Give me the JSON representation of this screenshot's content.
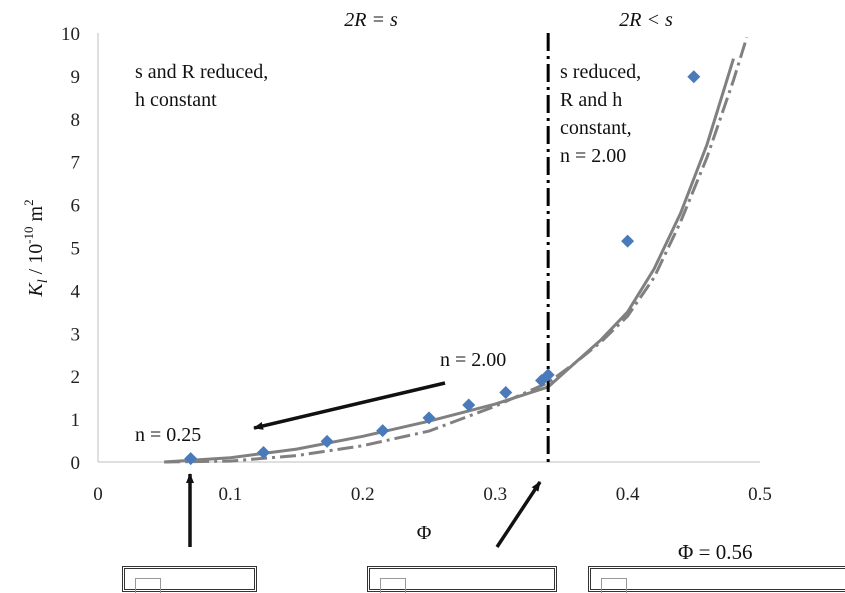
{
  "chart_data": {
    "type": "scatter",
    "xlabel": "Φ",
    "ylabel": "K_l / 10^-10 m²",
    "xlim": [
      0,
      0.5
    ],
    "ylim": [
      0,
      10
    ],
    "x_ticks": [
      "0",
      "0.1",
      "0.2",
      "0.3",
      "0.4",
      "0.5"
    ],
    "y_ticks": [
      "0",
      "1",
      "2",
      "3",
      "4",
      "5",
      "6",
      "7",
      "8",
      "9",
      "10"
    ],
    "grid": false,
    "series": [
      {
        "marker": "diamond",
        "color": "#4a7ab9",
        "x": [
          0.07,
          0.125,
          0.173,
          0.215,
          0.25,
          0.28,
          0.308,
          0.335,
          0.34,
          0.4,
          0.45
        ],
        "y": [
          0.08,
          0.22,
          0.48,
          0.73,
          1.03,
          1.33,
          1.62,
          1.9,
          2.03,
          5.15,
          8.98
        ]
      },
      {
        "style": "solid",
        "color": "#808080",
        "x": [
          0.05,
          0.1,
          0.15,
          0.2,
          0.25,
          0.3,
          0.34,
          0.36,
          0.38,
          0.4,
          0.42,
          0.44,
          0.46,
          0.48
        ],
        "y": [
          0.0,
          0.1,
          0.3,
          0.6,
          0.95,
          1.35,
          1.75,
          2.3,
          2.85,
          3.5,
          4.5,
          5.8,
          7.4,
          9.4
        ]
      },
      {
        "style": "dash-dot",
        "color": "#808080",
        "x": [
          0.05,
          0.1,
          0.15,
          0.2,
          0.25,
          0.3,
          0.34,
          0.36,
          0.38,
          0.4,
          0.42,
          0.44,
          0.46,
          0.48,
          0.49
        ],
        "y": [
          0.0,
          0.02,
          0.15,
          0.38,
          0.72,
          1.3,
          1.85,
          2.3,
          2.8,
          3.4,
          4.3,
          5.6,
          7.1,
          8.9,
          9.9
        ]
      }
    ],
    "divider_x": 0.34
  },
  "annotations": {
    "top_left_region": "2R = s",
    "top_right_region": "2R < s",
    "left_text_line1": "s and R reduced,",
    "left_text_line2": "h constant",
    "right_text_line1": "s reduced,",
    "right_text_line2": "R and h",
    "right_text_line3": "constant,",
    "right_text_line4": "n = 2.00",
    "n_upper": "n = 2.00",
    "n_lower": "n = 0.25",
    "phi_note": "Φ = 0.56"
  }
}
